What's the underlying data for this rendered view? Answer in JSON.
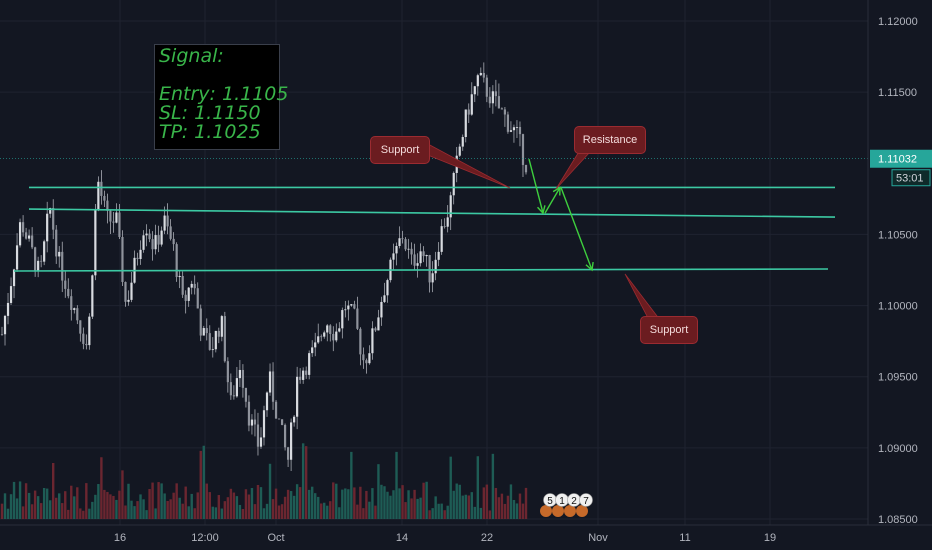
{
  "signal_box": {
    "title": "Signal:",
    "entry": "Entry: 1.1105",
    "sl": "SL: 1.1150",
    "tp": "TP: 1.1025"
  },
  "callouts": {
    "support_1": "Support",
    "resistance": "Resistance",
    "support_2": "Support"
  },
  "price_badge": {
    "price": "1.11032",
    "countdown": "53:01",
    "color": "#26a69a"
  },
  "colors": {
    "background": "#131722",
    "grid": "#1f2330",
    "up": "#b8bcc4",
    "level_line": "#3cc9a3",
    "arrow": "#3ecf3e",
    "signal_text": "#39b54a",
    "callout_bg": "#6b1c20",
    "volume_up": "#1e5c55",
    "volume_down": "#6b2630"
  },
  "chart_data": {
    "type": "candlestick",
    "y_axis": {
      "ticks": [
        "1.12000",
        "1.11500",
        "1.10500",
        "1.10000",
        "1.09500",
        "1.09000",
        "1.08500"
      ],
      "range": [
        1.085,
        1.121
      ]
    },
    "x_axis": {
      "ticks": [
        "16",
        "12:00",
        "Oct",
        "14",
        "22",
        "Nov",
        "11",
        "19"
      ]
    },
    "horizontal_levels": [
      1.1083,
      1.1065,
      1.1025
    ],
    "current_price": 1.11032,
    "price_path": [
      1.098,
      1.102,
      1.106,
      1.104,
      1.102,
      1.107,
      1.103,
      1.101,
      1.099,
      1.097,
      1.109,
      1.106,
      1.106,
      1.1,
      1.103,
      1.106,
      1.104,
      1.106,
      1.104,
      1.1,
      1.102,
      1.098,
      1.097,
      1.099,
      1.093,
      1.096,
      1.092,
      1.09,
      1.095,
      1.092,
      1.089,
      1.095,
      1.096,
      1.097,
      1.099,
      1.098,
      1.1,
      1.099,
      1.096,
      1.098,
      1.101,
      1.103,
      1.105,
      1.103,
      1.104,
      1.102,
      1.105,
      1.107,
      1.111,
      1.114,
      1.116,
      1.115,
      1.114,
      1.113,
      1.112,
      1.11
    ],
    "signal_arrows": [
      {
        "from": 1.1103,
        "to": 1.1065
      },
      {
        "from": 1.1065,
        "to": 1.1083
      },
      {
        "from": 1.1083,
        "to": 1.1025
      }
    ],
    "event_markers": [
      "5",
      "1",
      "2",
      "7"
    ]
  }
}
